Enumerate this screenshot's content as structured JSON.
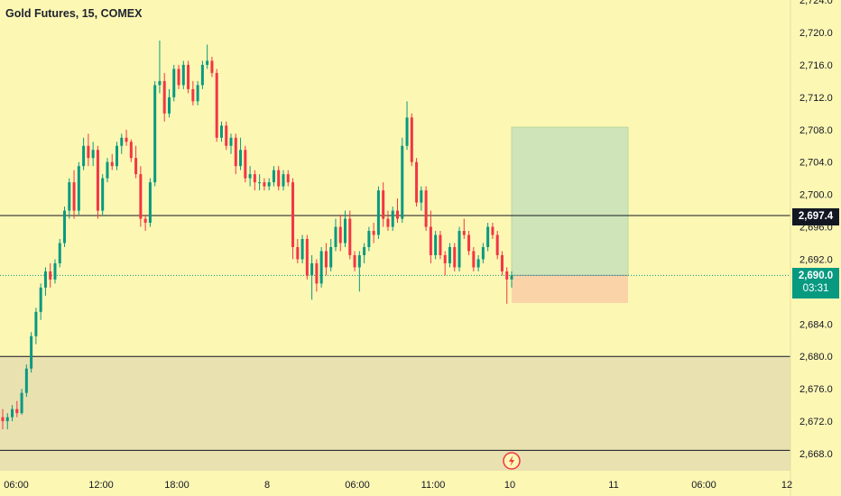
{
  "header": {
    "symbol_title": "Gold Futures, 15, COMEX"
  },
  "price_scale": {
    "ticks": [
      "2,724.0",
      "2,720.0",
      "2,716.0",
      "2,712.0",
      "2,708.0",
      "2,704.0",
      "2,700.0",
      "2,696.0",
      "2,692.0",
      "2,688.0",
      "2,684.0",
      "2,680.0",
      "2,676.0",
      "2,672.0",
      "2,668.0"
    ],
    "level_label": "2,697.4",
    "last_price_label": "2,690.0",
    "countdown": "03:31"
  },
  "time_scale": {
    "ticks": [
      "06:00",
      "12:00",
      "18:00",
      "8",
      "06:00",
      "11:00",
      "10",
      "11",
      "06:00",
      "12"
    ]
  },
  "colors": {
    "background": "#fdf7b4",
    "up": "#089981",
    "down": "#f23645",
    "zone": "#e9e1b0",
    "profit": "#cfe4b8",
    "loss": "#fbd3a8",
    "line": "#131722"
  },
  "icons": {
    "event_marker": "lightning-bolt-icon"
  },
  "chart_data": {
    "type": "candlestick",
    "title": "Gold Futures, 15, COMEX",
    "interval": "15",
    "ylim": [
      2666,
      2725
    ],
    "horizontal_levels": [
      2697.4,
      2680.0,
      2668.4
    ],
    "support_zone": [
      2668.4,
      2680.0
    ],
    "last_price": 2690.0,
    "position_tool": {
      "entry": 2690.0,
      "target": 2708.3,
      "stop": 2686.6
    },
    "x_ticks": [
      "06:00",
      "12:00",
      "18:00",
      "8",
      "06:00",
      "11:00",
      "10",
      "11",
      "06:00",
      "12"
    ],
    "y_ticks": [
      2724,
      2720,
      2716,
      2712,
      2708,
      2704,
      2700,
      2696,
      2692,
      2688,
      2684,
      2680,
      2676,
      2672,
      2668
    ],
    "series": [
      {
        "ohlc": [
          [
            2672.5,
            2673.5,
            2671.0,
            2672.0
          ],
          [
            2672.0,
            2673.0,
            2671.0,
            2672.5
          ],
          [
            2672.5,
            2674.0,
            2672.0,
            2673.5
          ],
          [
            2673.5,
            2674.5,
            2672.5,
            2673.0
          ],
          [
            2673.0,
            2676.0,
            2672.8,
            2675.5
          ],
          [
            2675.5,
            2679.0,
            2675.0,
            2678.5
          ],
          [
            2678.5,
            2683.0,
            2678.0,
            2682.5
          ],
          [
            2682.5,
            2686.0,
            2681.5,
            2685.5
          ],
          [
            2685.5,
            2689.0,
            2684.5,
            2688.5
          ],
          [
            2688.5,
            2691.0,
            2687.5,
            2690.5
          ],
          [
            2690.5,
            2691.5,
            2688.5,
            2689.5
          ],
          [
            2689.5,
            2692.0,
            2689.0,
            2691.5
          ],
          [
            2691.5,
            2694.5,
            2691.0,
            2694.0
          ],
          [
            2694.0,
            2698.5,
            2693.5,
            2698.0
          ],
          [
            2698.0,
            2702.0,
            2697.0,
            2701.5
          ],
          [
            2701.5,
            2703.0,
            2697.0,
            2698.0
          ],
          [
            2698.0,
            2704.0,
            2697.5,
            2703.5
          ],
          [
            2703.5,
            2707.0,
            2703.0,
            2706.0
          ],
          [
            2706.0,
            2707.5,
            2703.5,
            2704.5
          ],
          [
            2704.5,
            2706.5,
            2703.5,
            2705.5
          ],
          [
            2705.5,
            2706.0,
            2697.0,
            2698.0
          ],
          [
            2698.0,
            2702.5,
            2697.5,
            2702.0
          ],
          [
            2702.0,
            2704.5,
            2701.5,
            2704.0
          ],
          [
            2704.0,
            2705.0,
            2703.0,
            2703.5
          ],
          [
            2703.5,
            2706.5,
            2703.0,
            2706.0
          ],
          [
            2706.0,
            2707.5,
            2705.0,
            2707.0
          ],
          [
            2707.0,
            2708.0,
            2706.0,
            2706.5
          ],
          [
            2706.5,
            2706.8,
            2704.0,
            2704.5
          ],
          [
            2704.5,
            2706.0,
            2702.0,
            2702.5
          ],
          [
            2702.5,
            2703.5,
            2696.0,
            2697.0
          ],
          [
            2697.0,
            2697.5,
            2695.5,
            2696.5
          ],
          [
            2696.5,
            2702.0,
            2696.0,
            2701.5
          ],
          [
            2701.5,
            2714.0,
            2701.0,
            2713.5
          ],
          [
            2713.5,
            2719.0,
            2712.5,
            2714.0
          ],
          [
            2714.0,
            2715.0,
            2709.0,
            2710.0
          ],
          [
            2710.0,
            2713.0,
            2709.5,
            2712.0
          ],
          [
            2712.0,
            2716.0,
            2711.5,
            2715.5
          ],
          [
            2715.5,
            2716.0,
            2713.0,
            2713.5
          ],
          [
            2713.5,
            2716.5,
            2713.0,
            2716.0
          ],
          [
            2716.0,
            2716.5,
            2712.5,
            2713.0
          ],
          [
            2713.0,
            2714.0,
            2711.0,
            2711.5
          ],
          [
            2711.5,
            2714.0,
            2711.0,
            2713.5
          ],
          [
            2713.5,
            2716.5,
            2713.0,
            2716.0
          ],
          [
            2716.0,
            2718.5,
            2715.5,
            2716.5
          ],
          [
            2716.5,
            2717.0,
            2714.5,
            2715.0
          ],
          [
            2715.0,
            2715.5,
            2706.5,
            2707.0
          ],
          [
            2707.0,
            2709.0,
            2706.5,
            2708.5
          ],
          [
            2708.5,
            2709.0,
            2705.5,
            2706.0
          ],
          [
            2706.0,
            2707.5,
            2705.0,
            2707.0
          ],
          [
            2707.0,
            2707.5,
            2702.5,
            2703.5
          ],
          [
            2703.5,
            2707.0,
            2703.0,
            2705.5
          ],
          [
            2705.5,
            2706.0,
            2701.5,
            2702.0
          ],
          [
            2702.0,
            2703.5,
            2701.0,
            2702.5
          ],
          [
            2702.5,
            2703.0,
            2700.5,
            2701.5
          ],
          [
            2701.5,
            2702.5,
            2700.5,
            2701.5
          ],
          [
            2701.5,
            2702.0,
            2700.5,
            2701.0
          ],
          [
            2701.0,
            2702.0,
            2700.5,
            2701.5
          ],
          [
            2701.5,
            2703.5,
            2701.0,
            2703.0
          ],
          [
            2703.0,
            2703.5,
            2700.5,
            2701.0
          ],
          [
            2701.0,
            2703.0,
            2700.5,
            2702.5
          ],
          [
            2702.5,
            2703.0,
            2701.0,
            2701.5
          ],
          [
            2701.5,
            2702.0,
            2692.0,
            2693.5
          ],
          [
            2693.5,
            2694.5,
            2691.5,
            2692.0
          ],
          [
            2692.0,
            2695.0,
            2691.5,
            2694.5
          ],
          [
            2694.5,
            2695.0,
            2689.5,
            2690.0
          ],
          [
            2690.0,
            2692.5,
            2687.0,
            2691.5
          ],
          [
            2691.5,
            2692.0,
            2688.0,
            2689.0
          ],
          [
            2689.0,
            2693.5,
            2688.5,
            2693.0
          ],
          [
            2693.0,
            2694.0,
            2690.0,
            2691.0
          ],
          [
            2691.0,
            2694.5,
            2690.5,
            2693.5
          ],
          [
            2693.5,
            2697.0,
            2693.0,
            2696.0
          ],
          [
            2696.0,
            2697.5,
            2693.0,
            2694.0
          ],
          [
            2694.0,
            2698.0,
            2693.5,
            2697.0
          ],
          [
            2697.0,
            2698.0,
            2692.0,
            2692.5
          ],
          [
            2692.5,
            2693.0,
            2690.5,
            2691.0
          ],
          [
            2691.0,
            2693.0,
            2688.0,
            2692.5
          ],
          [
            2692.5,
            2694.0,
            2691.5,
            2693.5
          ],
          [
            2693.5,
            2696.0,
            2693.0,
            2695.5
          ],
          [
            2695.5,
            2696.5,
            2694.0,
            2695.0
          ],
          [
            2695.0,
            2701.0,
            2694.5,
            2700.5
          ],
          [
            2700.5,
            2701.5,
            2696.0,
            2697.0
          ],
          [
            2697.0,
            2698.0,
            2695.5,
            2696.0
          ],
          [
            2696.0,
            2698.5,
            2695.5,
            2698.0
          ],
          [
            2698.0,
            2699.5,
            2696.5,
            2697.0
          ],
          [
            2697.0,
            2707.0,
            2696.5,
            2706.0
          ],
          [
            2706.0,
            2711.5,
            2705.5,
            2709.5
          ],
          [
            2709.5,
            2710.0,
            2703.5,
            2704.0
          ],
          [
            2704.0,
            2704.5,
            2698.5,
            2699.0
          ],
          [
            2699.0,
            2701.0,
            2698.0,
            2700.5
          ],
          [
            2700.5,
            2701.0,
            2695.5,
            2696.0
          ],
          [
            2696.0,
            2698.0,
            2691.5,
            2692.5
          ],
          [
            2692.5,
            2695.5,
            2692.0,
            2695.0
          ],
          [
            2695.0,
            2695.5,
            2692.0,
            2692.5
          ],
          [
            2692.5,
            2693.0,
            2690.0,
            2691.5
          ],
          [
            2691.5,
            2694.0,
            2691.0,
            2693.5
          ],
          [
            2693.5,
            2694.0,
            2690.5,
            2691.0
          ],
          [
            2691.0,
            2696.0,
            2690.5,
            2695.5
          ],
          [
            2695.5,
            2697.0,
            2694.5,
            2695.0
          ],
          [
            2695.0,
            2695.5,
            2692.5,
            2693.0
          ],
          [
            2693.0,
            2693.5,
            2690.5,
            2691.0
          ],
          [
            2691.0,
            2692.5,
            2690.5,
            2692.0
          ],
          [
            2692.0,
            2694.0,
            2691.5,
            2693.5
          ],
          [
            2693.5,
            2696.5,
            2693.0,
            2696.0
          ],
          [
            2696.0,
            2696.5,
            2694.5,
            2695.0
          ],
          [
            2695.0,
            2695.5,
            2692.0,
            2692.5
          ],
          [
            2692.5,
            2693.0,
            2690.0,
            2690.5
          ],
          [
            2690.5,
            2691.0,
            2686.5,
            2689.5
          ],
          [
            2689.5,
            2690.5,
            2688.5,
            2690.0
          ]
        ]
      }
    ]
  }
}
